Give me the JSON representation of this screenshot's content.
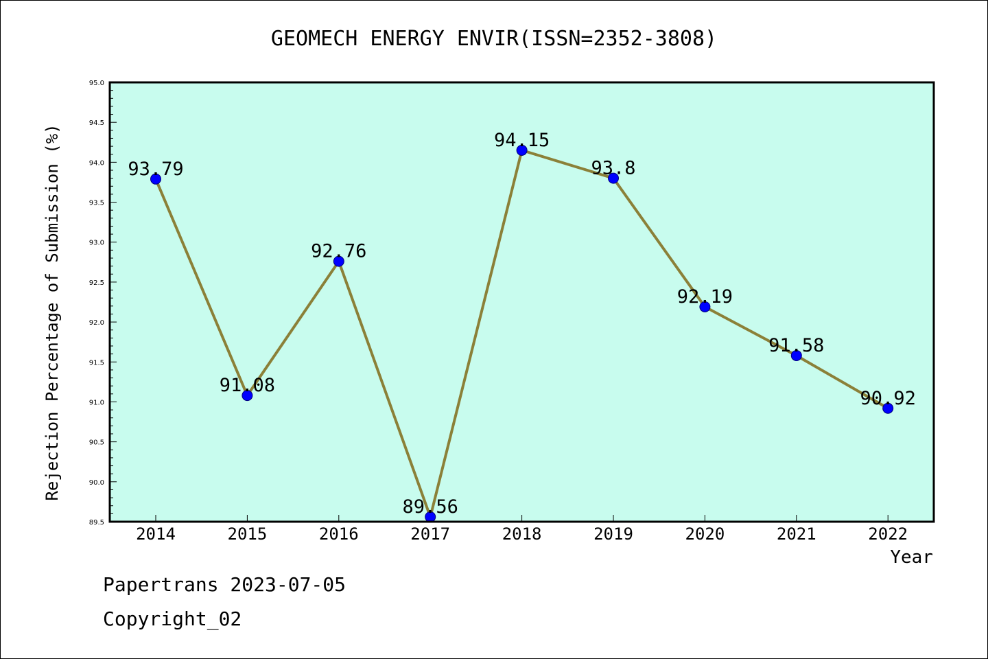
{
  "chart_data": {
    "type": "line",
    "title": "GEOMECH ENERGY ENVIR(ISSN=2352-3808)",
    "xlabel": "Year",
    "ylabel": "Rejection Percentage of Submission (%)",
    "categories": [
      "2014",
      "2015",
      "2016",
      "2017",
      "2018",
      "2019",
      "2020",
      "2021",
      "2022"
    ],
    "values": [
      93.79,
      91.08,
      92.76,
      89.56,
      94.15,
      93.8,
      92.19,
      91.58,
      90.92
    ],
    "data_labels": [
      "93.79",
      "91.08",
      "92.76",
      "89.56",
      "94.15",
      "93.8",
      "92.19",
      "91.58",
      "90.92"
    ],
    "ylim": [
      89.5,
      95.0
    ],
    "yticks": [
      "89.5",
      "90.0",
      "90.5",
      "91.0",
      "91.5",
      "92.0",
      "92.5",
      "93.0",
      "93.5",
      "94.0",
      "94.5",
      "95.0"
    ],
    "grid": false,
    "legend": "none",
    "colors": {
      "plot_background": "#c8fcee",
      "line": "#8b8038",
      "marker": "#0000ff",
      "marker_edge": "#00007a"
    }
  },
  "footer": {
    "line1": "Papertrans 2023-07-05",
    "line2": "Copyright_02"
  }
}
